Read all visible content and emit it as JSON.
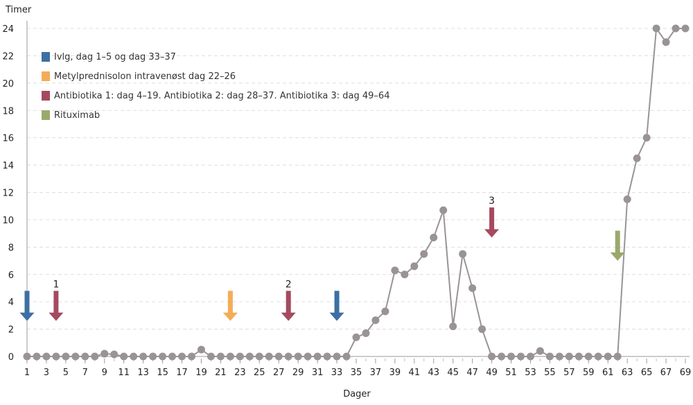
{
  "chart_data": {
    "type": "line",
    "ylabel": "Timer",
    "xlabel": "Dager",
    "xlim": [
      1,
      69
    ],
    "ylim": [
      0,
      24
    ],
    "yticks": [
      0,
      2,
      4,
      6,
      8,
      10,
      12,
      14,
      16,
      18,
      20,
      22,
      24
    ],
    "xticks": [
      1,
      3,
      5,
      7,
      9,
      11,
      13,
      15,
      17,
      19,
      21,
      23,
      25,
      27,
      29,
      31,
      33,
      35,
      37,
      39,
      41,
      43,
      45,
      47,
      49,
      51,
      53,
      55,
      57,
      59,
      61,
      63,
      65,
      67,
      69
    ],
    "grid": true,
    "line_color": "#9a9394",
    "x": [
      1,
      2,
      3,
      4,
      5,
      6,
      7,
      8,
      9,
      10,
      11,
      12,
      13,
      14,
      15,
      16,
      17,
      18,
      19,
      20,
      21,
      22,
      23,
      24,
      25,
      26,
      27,
      28,
      29,
      30,
      31,
      32,
      33,
      34,
      35,
      36,
      37,
      38,
      39,
      40,
      41,
      42,
      43,
      44,
      45,
      46,
      47,
      48,
      49,
      50,
      51,
      52,
      53,
      54,
      55,
      56,
      57,
      58,
      59,
      60,
      61,
      62,
      63,
      64,
      65,
      66,
      67,
      68,
      69
    ],
    "y": [
      0,
      0,
      0,
      0,
      0,
      0,
      0,
      0,
      0.2,
      0.15,
      0,
      0,
      0,
      0,
      0,
      0,
      0,
      0,
      0.5,
      0,
      0,
      0,
      0,
      0,
      0,
      0,
      0,
      0,
      0,
      0,
      0,
      0,
      0,
      0,
      1.4,
      1.7,
      2.65,
      3.3,
      6.3,
      6,
      6.6,
      7.5,
      8.7,
      10.7,
      2.2,
      7.5,
      5,
      2,
      0,
      0,
      0,
      0,
      0,
      0.4,
      0,
      0,
      0,
      0,
      0,
      0,
      0,
      0,
      11.5,
      14.5,
      16,
      24,
      23,
      24,
      24
    ],
    "legend": [
      {
        "label": "Ivlg, dag 1–5 og dag 33–37",
        "color": "#3d6fa3"
      },
      {
        "label": "Metylprednisolon intravenøst dag 22–26",
        "color": "#f5ac57"
      },
      {
        "label": "Antibiotika 1: dag 4–19. Antibiotika 2: dag 28–37. Antibiotika 3: dag 49–64",
        "color": "#a54a5f"
      },
      {
        "label": "Rituximab",
        "color": "#9aa96b"
      }
    ],
    "annotations": [
      {
        "type": "arrow",
        "day": 1,
        "series": 0,
        "top": 4.8,
        "tip": 2.6,
        "label": ""
      },
      {
        "type": "arrow",
        "day": 4,
        "series": 2,
        "top": 4.8,
        "tip": 2.6,
        "label": "1"
      },
      {
        "type": "arrow",
        "day": 22,
        "series": 1,
        "top": 4.8,
        "tip": 2.6,
        "label": ""
      },
      {
        "type": "arrow",
        "day": 28,
        "series": 2,
        "top": 4.8,
        "tip": 2.6,
        "label": "2"
      },
      {
        "type": "arrow",
        "day": 33,
        "series": 0,
        "top": 4.8,
        "tip": 2.6,
        "label": ""
      },
      {
        "type": "arrow",
        "day": 49,
        "series": 2,
        "top": 10.9,
        "tip": 8.7,
        "label": "3"
      },
      {
        "type": "arrow",
        "day": 62,
        "series": 3,
        "top": 9.2,
        "tip": 7.0,
        "label": ""
      }
    ]
  }
}
